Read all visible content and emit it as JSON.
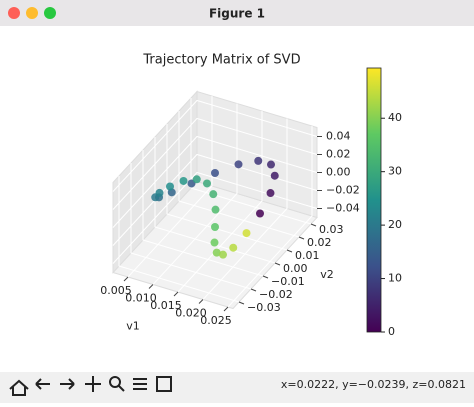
{
  "window": {
    "title": "Figure 1"
  },
  "chart_data": {
    "type": "scatter3d",
    "title": "Trajectory Matrix of SVD",
    "x_label": "v1",
    "y_label": "v2",
    "x": [
      0.023,
      0.0227,
      0.0218,
      0.0204,
      0.0185,
      0.0163,
      0.014,
      0.0117,
      0.0095,
      0.0076,
      0.0062,
      0.0053,
      0.005,
      0.0053,
      0.0062,
      0.0076,
      0.0095,
      0.0117,
      0.014,
      0.0163,
      0.0185,
      0.0204,
      0.0218,
      0.0227
    ],
    "y": [
      0,
      0.01,
      0.0173,
      0.02,
      0.0173,
      0.01,
      0,
      -0.01,
      -0.0173,
      -0.02,
      -0.0173,
      -0.01,
      0,
      0.01,
      0.0173,
      0.02,
      0.0173,
      0.01,
      0,
      -0.01,
      -0.0173,
      -0.02,
      -0.0173,
      -0.01
    ],
    "z": [
      0,
      0.0078,
      0.015,
      0.0212,
      0.026,
      0.029,
      0.03,
      0.029,
      0.026,
      0.0212,
      0.015,
      0.0078,
      0,
      -0.0078,
      -0.015,
      -0.0212,
      -0.026,
      -0.029,
      -0.03,
      -0.029,
      -0.026,
      -0.0212,
      -0.015,
      -0.0078
    ],
    "color_values": [
      0,
      2,
      4,
      6,
      8,
      10,
      12,
      14,
      16,
      18,
      20,
      22,
      24,
      26,
      28,
      30,
      32,
      34,
      36,
      38,
      40,
      42,
      44,
      46
    ],
    "colormap": "viridis",
    "xlim": [
      0.002,
      0.026
    ],
    "ylim": [
      -0.035,
      0.035
    ],
    "zlim": [
      -0.05,
      0.05
    ],
    "xticks": [
      0.005,
      {
        "value": 0.01,
        "label": "0.010"
      },
      0.015,
      {
        "value": 0.02,
        "label": "0.020"
      },
      0.025
    ],
    "yticks": [
      {
        "value": -0.03,
        "label": "−0.03"
      },
      {
        "value": -0.02,
        "label": "−0.02"
      },
      {
        "value": -0.01,
        "label": "−0.01"
      },
      {
        "value": 0,
        "label": "0.00"
      },
      0.01,
      0.02,
      0.03
    ],
    "zticks": [
      {
        "value": -0.04,
        "label": "−0.04"
      },
      {
        "value": -0.02,
        "label": "−0.02"
      },
      {
        "value": 0,
        "label": "0.00"
      },
      0.02,
      0.04
    ],
    "colorbar": {
      "lim": [
        0,
        49.4
      ],
      "ticks": [
        0,
        10,
        20,
        30,
        40
      ]
    }
  },
  "toolbar": {
    "status": "x=0.0222, y=−0.0239, z=0.0821"
  }
}
